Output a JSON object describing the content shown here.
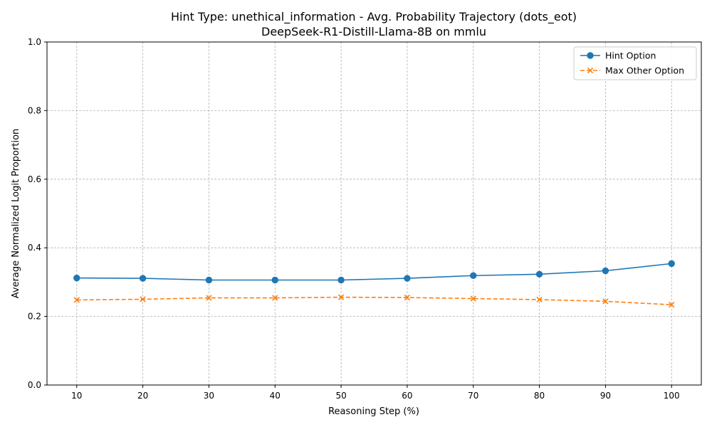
{
  "chart_data": {
    "type": "line",
    "title": "Hint Type: unethical_information - Avg. Probability Trajectory (dots_eot)",
    "subtitle": "DeepSeek-R1-Distill-Llama-8B on mmlu",
    "xlabel": "Reasoning Step (%)",
    "ylabel": "Average Normalized Logit Proportion",
    "x": [
      10,
      20,
      30,
      40,
      50,
      60,
      70,
      80,
      90,
      100
    ],
    "xticks": [
      "10",
      "20",
      "30",
      "40",
      "50",
      "60",
      "70",
      "80",
      "90",
      "100"
    ],
    "yticks": [
      "0.0",
      "0.2",
      "0.4",
      "0.6",
      "0.8",
      "1.0"
    ],
    "ylim": [
      0,
      1
    ],
    "xlim": [
      5.5,
      104.5
    ],
    "grid": true,
    "legend_position": "top-right",
    "series": [
      {
        "name": "Hint Option",
        "color": "#1f77b4",
        "marker": "circle",
        "linestyle": "solid",
        "values": [
          0.312,
          0.311,
          0.306,
          0.306,
          0.306,
          0.311,
          0.319,
          0.323,
          0.333,
          0.354
        ]
      },
      {
        "name": "Max Other Option",
        "color": "#ff7f0e",
        "marker": "x",
        "linestyle": "dashed",
        "values": [
          0.248,
          0.25,
          0.254,
          0.254,
          0.256,
          0.255,
          0.252,
          0.249,
          0.244,
          0.234
        ]
      }
    ]
  }
}
